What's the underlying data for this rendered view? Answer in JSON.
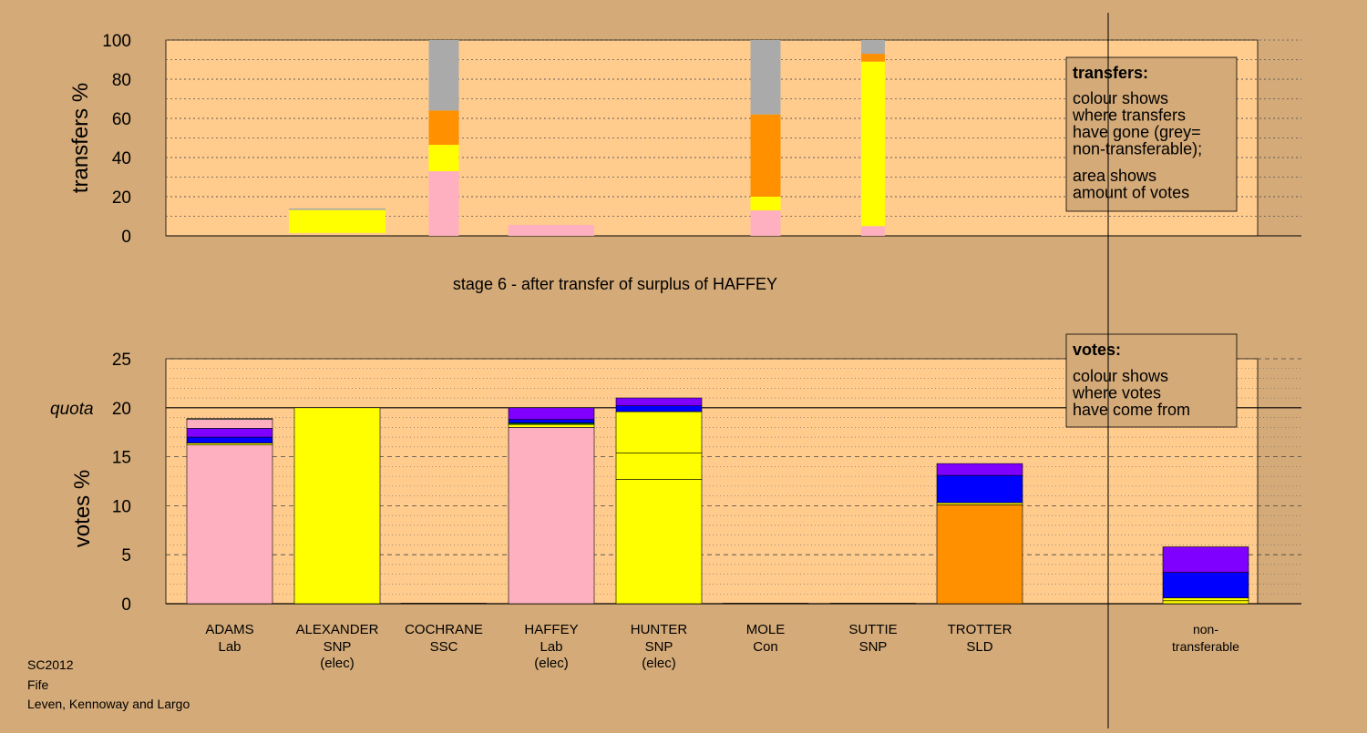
{
  "stage_title": "stage 6 - after transfer of surplus of HAFFEY",
  "footer": [
    "SC2012",
    "Fife",
    "Leven, Kennoway and Largo"
  ],
  "colors": {
    "page_bg": "#d4aa78",
    "plot_bg": "#ffcc8e",
    "pink": "#ffb0c0",
    "yellow": "#ffff00",
    "orange": "#ff9000",
    "grey": "#aaaaaa",
    "blue": "#0000ff",
    "purple": "#8000ff",
    "green": "#008000"
  },
  "chart_data": [
    {
      "type": "bar",
      "id": "transfers",
      "ylabel": "transfers %",
      "ylim": [
        0,
        100
      ],
      "yticks": [
        0,
        20,
        40,
        60,
        80,
        100
      ],
      "grid": true,
      "categories": [
        "ADAMS",
        "ALEXANDER",
        "COCHRANE",
        "HAFFEY",
        "HUNTER",
        "MOLE",
        "SUTTIE",
        "TROTTER"
      ],
      "legend": {
        "title": "transfers:",
        "lines1": [
          "colour shows",
          "where transfers",
          "have gone (grey=",
          "non-transferable);"
        ],
        "lines2": [
          "area shows",
          "amount of votes"
        ],
        "position": "top-right"
      },
      "bars": [
        {
          "category": "ALEXANDER",
          "width": 0.9,
          "segments": [
            {
              "color": "yellow",
              "from": 1.5,
              "to": 13.2
            },
            {
              "color": "grey",
              "from": 13.2,
              "to": 14.0
            }
          ]
        },
        {
          "category": "COCHRANE",
          "width": 0.28,
          "segments": [
            {
              "color": "pink",
              "from": 0,
              "to": 33
            },
            {
              "color": "yellow",
              "from": 33,
              "to": 46.5
            },
            {
              "color": "orange",
              "from": 46.5,
              "to": 64
            },
            {
              "color": "grey",
              "from": 64,
              "to": 100
            }
          ]
        },
        {
          "category": "HAFFEY",
          "width": 0.8,
          "segments": [
            {
              "color": "pink",
              "from": 0,
              "to": 5.5
            }
          ]
        },
        {
          "category": "MOLE",
          "width": 0.28,
          "segments": [
            {
              "color": "pink",
              "from": 0,
              "to": 13
            },
            {
              "color": "yellow",
              "from": 13,
              "to": 20
            },
            {
              "color": "orange",
              "from": 20,
              "to": 62
            },
            {
              "color": "grey",
              "from": 62,
              "to": 100
            }
          ]
        },
        {
          "category": "SUTTIE",
          "width": 0.22,
          "segments": [
            {
              "color": "pink",
              "from": 0,
              "to": 5
            },
            {
              "color": "yellow",
              "from": 5,
              "to": 89
            },
            {
              "color": "orange",
              "from": 89,
              "to": 93
            },
            {
              "color": "grey",
              "from": 93,
              "to": 100
            }
          ]
        }
      ]
    },
    {
      "type": "bar",
      "id": "votes",
      "ylabel": "votes %",
      "ylim": [
        0,
        25
      ],
      "yticks": [
        0,
        5,
        10,
        15,
        20,
        25
      ],
      "quota": 20,
      "quota_label": "quota",
      "grid": true,
      "categories": [
        {
          "name": "ADAMS",
          "party": "Lab",
          "status": ""
        },
        {
          "name": "ALEXANDER",
          "party": "SNP",
          "status": "(elec)"
        },
        {
          "name": "COCHRANE",
          "party": "SSC",
          "status": ""
        },
        {
          "name": "HAFFEY",
          "party": "Lab",
          "status": "(elec)"
        },
        {
          "name": "HUNTER",
          "party": "SNP",
          "status": "(elec)"
        },
        {
          "name": "MOLE",
          "party": "Con",
          "status": ""
        },
        {
          "name": "SUTTIE",
          "party": "SNP",
          "status": ""
        },
        {
          "name": "TROTTER",
          "party": "SLD",
          "status": ""
        },
        {
          "name": "non-",
          "party": "transferable",
          "status": ""
        }
      ],
      "legend": {
        "title": "votes:",
        "lines1": [
          "colour shows",
          "where votes",
          "have come from"
        ],
        "position": "top-right"
      },
      "bars": [
        {
          "category": "ADAMS",
          "segments": [
            {
              "color": "pink",
              "from": 0,
              "to": 16.2
            },
            {
              "color": "yellow",
              "from": 16.2,
              "to": 16.4
            },
            {
              "color": "blue",
              "from": 16.4,
              "to": 17.0
            },
            {
              "color": "purple",
              "from": 17.0,
              "to": 17.9
            },
            {
              "color": "pink",
              "from": 17.9,
              "to": 18.8
            },
            {
              "color": "grey",
              "from": 18.8,
              "to": 18.9
            }
          ]
        },
        {
          "category": "ALEXANDER",
          "segments": [
            {
              "color": "yellow",
              "from": 0,
              "to": 20
            }
          ]
        },
        {
          "category": "COCHRANE",
          "segments": [
            {
              "color": "pink",
              "from": 0,
              "to": 0.05
            }
          ]
        },
        {
          "category": "HAFFEY",
          "segments": [
            {
              "color": "pink",
              "from": 0,
              "to": 18.0
            },
            {
              "color": "yellow",
              "from": 18.0,
              "to": 18.3
            },
            {
              "color": "green",
              "from": 18.3,
              "to": 18.45
            },
            {
              "color": "blue",
              "from": 18.45,
              "to": 18.8
            },
            {
              "color": "purple",
              "from": 18.8,
              "to": 20.0
            }
          ]
        },
        {
          "category": "HUNTER",
          "segments": [
            {
              "color": "yellow",
              "from": 0,
              "to": 12.7
            },
            {
              "color": "yellow",
              "from": 12.7,
              "to": 15.4
            },
            {
              "color": "yellow",
              "from": 15.4,
              "to": 19.6
            },
            {
              "color": "blue",
              "from": 19.6,
              "to": 20.2
            },
            {
              "color": "purple",
              "from": 20.2,
              "to": 21.0
            }
          ]
        },
        {
          "category": "MOLE",
          "segments": [
            {
              "color": "pink",
              "from": 0,
              "to": 0.05
            }
          ]
        },
        {
          "category": "SUTTIE",
          "segments": [
            {
              "color": "pink",
              "from": 0,
              "to": 0.05
            }
          ]
        },
        {
          "category": "TROTTER",
          "segments": [
            {
              "color": "orange",
              "from": 0,
              "to": 10.1
            },
            {
              "color": "yellow",
              "from": 10.1,
              "to": 10.3
            },
            {
              "color": "blue",
              "from": 10.3,
              "to": 13.1
            },
            {
              "color": "purple",
              "from": 13.1,
              "to": 14.3
            }
          ]
        },
        {
          "category": "non-",
          "segments": [
            {
              "color": "yellow",
              "from": 0,
              "to": 0.3
            },
            {
              "color": "yellow",
              "from": 0.3,
              "to": 0.6
            },
            {
              "color": "blue",
              "from": 0.6,
              "to": 3.2
            },
            {
              "color": "purple",
              "from": 3.2,
              "to": 5.8
            }
          ]
        }
      ]
    }
  ]
}
